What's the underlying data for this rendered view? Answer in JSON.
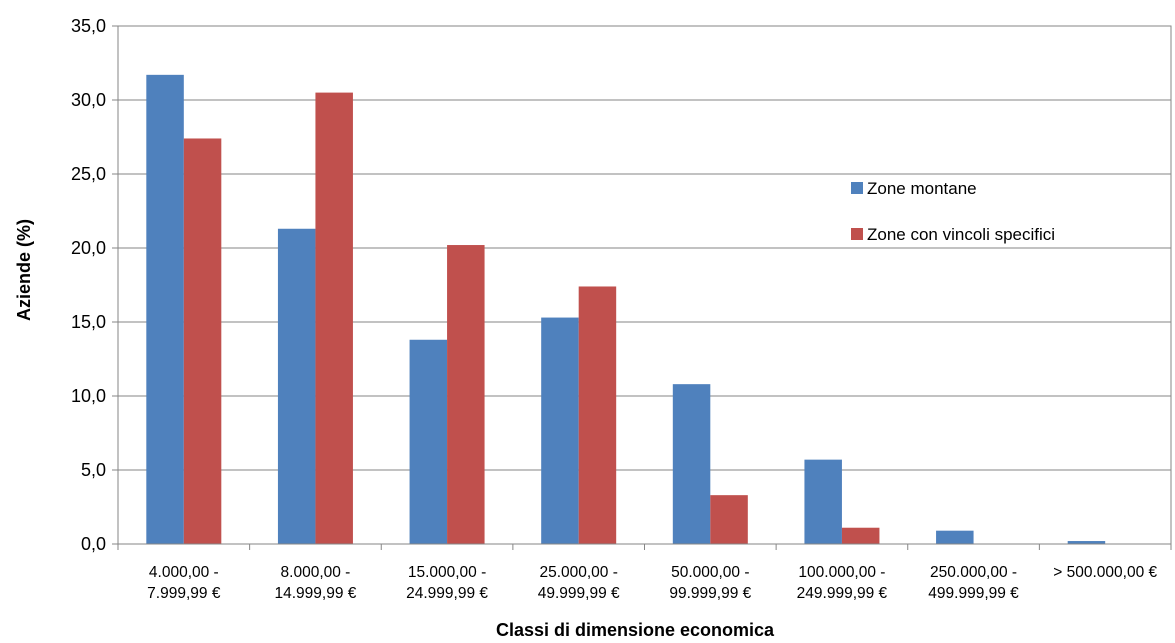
{
  "chart_data": {
    "type": "bar",
    "title": "",
    "xlabel": "Classi di dimensione economica",
    "ylabel": "Aziende (%)",
    "ylim": [
      0,
      35
    ],
    "yticks": [
      "0,0",
      "5,0",
      "10,0",
      "15,0",
      "20,0",
      "25,0",
      "30,0",
      "35,0"
    ],
    "grid": "horizontal",
    "legend_position": "right",
    "categories": [
      [
        "4.000,00 -",
        "7.999,99 €"
      ],
      [
        "8.000,00 -",
        "14.999,99 €"
      ],
      [
        "15.000,00 -",
        "24.999,99 €"
      ],
      [
        "25.000,00 -",
        "49.999,99 €"
      ],
      [
        "50.000,00 -",
        "99.999,99 €"
      ],
      [
        "100.000,00 -",
        "249.999,99 €"
      ],
      [
        "250.000,00 -",
        "499.999,99 €"
      ],
      [
        "> 500.000,00 €"
      ]
    ],
    "series": [
      {
        "name": "Zone montane",
        "color": "#4F81BD",
        "values": [
          31.7,
          21.3,
          13.8,
          15.3,
          10.8,
          5.7,
          0.9,
          0.2
        ]
      },
      {
        "name": "Zone con vincoli specifici",
        "color": "#C0504D",
        "values": [
          27.4,
          30.5,
          20.2,
          17.4,
          3.3,
          1.1,
          0.0,
          0.0
        ]
      }
    ]
  }
}
